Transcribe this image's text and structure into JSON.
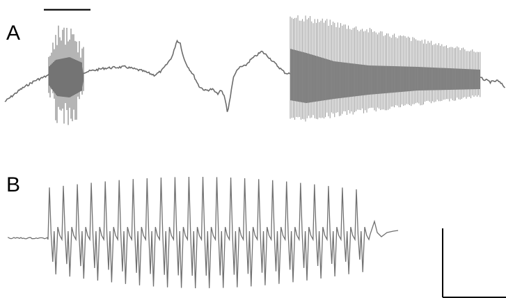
{
  "figure": {
    "panel_a": {
      "label": "A"
    },
    "panel_b": {
      "label": "B"
    }
  },
  "colors": {
    "trace_a": "#6b6b6b",
    "trace_a_fill": "#7d7d7d",
    "trace_b": "#707070",
    "scale_bar": "#000000"
  }
}
